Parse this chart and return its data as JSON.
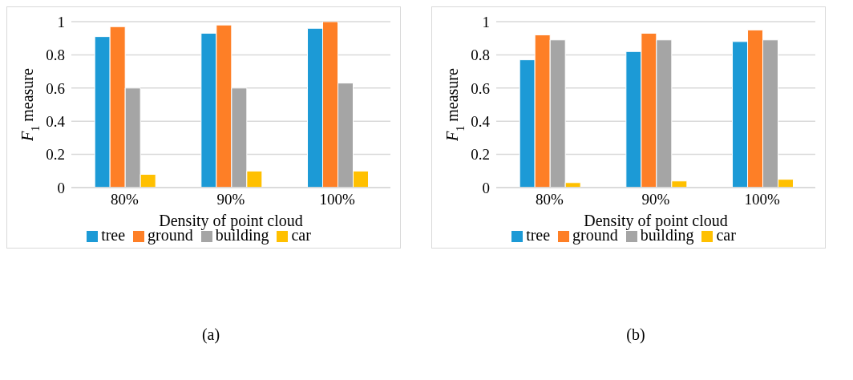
{
  "chart_data": [
    {
      "type": "bar",
      "xlabel": "Density of point cloud",
      "ylabel": "F$_{1}$ measure",
      "categories": [
        "80%",
        "90%",
        "100%"
      ],
      "series": [
        {
          "name": "tree",
          "color": "#1c9ad6",
          "values": [
            0.91,
            0.93,
            0.96
          ]
        },
        {
          "name": "ground",
          "color": "#fe7f26",
          "values": [
            0.97,
            0.98,
            1.0
          ]
        },
        {
          "name": "building",
          "color": "#a5a5a5",
          "values": [
            0.6,
            0.6,
            0.63
          ]
        },
        {
          "name": "car",
          "color": "#ffc000",
          "values": [
            0.08,
            0.1,
            0.1
          ]
        }
      ],
      "ylim": [
        0,
        1
      ],
      "yticks": [
        0,
        0.2,
        0.4,
        0.6,
        0.8,
        1
      ],
      "grid": "y",
      "legend": "bottom",
      "annotations": [
        "(a)"
      ]
    },
    {
      "type": "bar",
      "xlabel": "Density of point cloud",
      "ylabel": "F$_{1}$ measure",
      "categories": [
        "80%",
        "90%",
        "100%"
      ],
      "series": [
        {
          "name": "tree",
          "color": "#1c9ad6",
          "values": [
            0.77,
            0.82,
            0.88
          ]
        },
        {
          "name": "ground",
          "color": "#fe7f26",
          "values": [
            0.92,
            0.93,
            0.95
          ]
        },
        {
          "name": "building",
          "color": "#a5a5a5",
          "values": [
            0.89,
            0.89,
            0.89
          ]
        },
        {
          "name": "car",
          "color": "#ffc000",
          "values": [
            0.03,
            0.04,
            0.05
          ]
        }
      ],
      "ylim": [
        0,
        1
      ],
      "yticks": [
        0,
        0.2,
        0.4,
        0.6,
        0.8,
        1
      ],
      "grid": "y",
      "legend": "bottom",
      "annotations": [
        "(b)"
      ]
    }
  ]
}
